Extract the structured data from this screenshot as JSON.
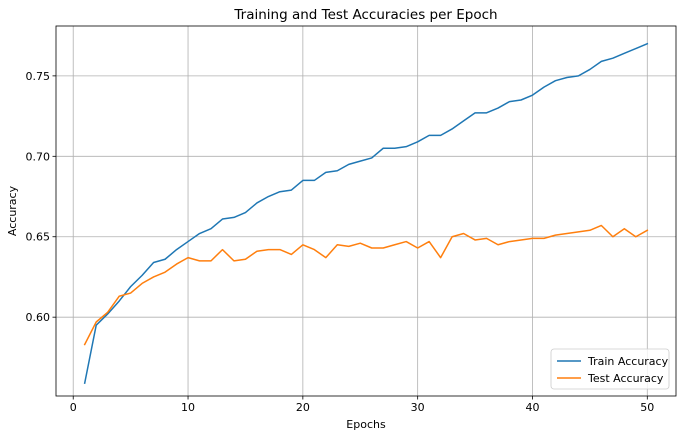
{
  "chart_data": {
    "type": "line",
    "title": "Training and Test Accuracies per Epoch",
    "xlabel": "Epochs",
    "ylabel": "Accuracy",
    "xlim": [
      -1.5,
      52.5
    ],
    "ylim": [
      0.551,
      0.781
    ],
    "xticks": [
      0,
      10,
      20,
      30,
      40,
      50
    ],
    "xtick_labels": [
      "0",
      "10",
      "20",
      "30",
      "40",
      "50"
    ],
    "yticks": [
      0.6,
      0.65,
      0.7,
      0.75
    ],
    "ytick_labels": [
      "0.60",
      "0.65",
      "0.70",
      "0.75"
    ],
    "grid": true,
    "legend_position": "lower-right",
    "x": [
      1,
      2,
      3,
      4,
      5,
      6,
      7,
      8,
      9,
      10,
      11,
      12,
      13,
      14,
      15,
      16,
      17,
      18,
      19,
      20,
      21,
      22,
      23,
      24,
      25,
      26,
      27,
      28,
      29,
      30,
      31,
      32,
      33,
      34,
      35,
      36,
      37,
      38,
      39,
      40,
      41,
      42,
      43,
      44,
      45,
      46,
      47,
      48,
      49,
      50
    ],
    "series": [
      {
        "name": "Train Accuracy",
        "color": "#1f77b4",
        "values": [
          0.559,
          0.595,
          0.602,
          0.61,
          0.619,
          0.626,
          0.634,
          0.636,
          0.642,
          0.647,
          0.652,
          0.655,
          0.661,
          0.662,
          0.665,
          0.671,
          0.675,
          0.678,
          0.679,
          0.685,
          0.685,
          0.69,
          0.691,
          0.695,
          0.697,
          0.699,
          0.705,
          0.705,
          0.706,
          0.709,
          0.713,
          0.713,
          0.717,
          0.722,
          0.727,
          0.727,
          0.73,
          0.734,
          0.735,
          0.738,
          0.743,
          0.747,
          0.749,
          0.75,
          0.754,
          0.759,
          0.761,
          0.764,
          0.767,
          0.77
        ]
      },
      {
        "name": "Test Accuracy",
        "color": "#ff7f0e",
        "values": [
          0.583,
          0.597,
          0.603,
          0.613,
          0.615,
          0.621,
          0.625,
          0.628,
          0.633,
          0.637,
          0.635,
          0.635,
          0.642,
          0.635,
          0.636,
          0.641,
          0.642,
          0.642,
          0.639,
          0.645,
          0.642,
          0.637,
          0.645,
          0.644,
          0.646,
          0.643,
          0.643,
          0.645,
          0.647,
          0.643,
          0.647,
          0.637,
          0.65,
          0.652,
          0.648,
          0.649,
          0.645,
          0.647,
          0.648,
          0.649,
          0.649,
          0.651,
          0.652,
          0.653,
          0.654,
          0.657,
          0.65,
          0.655,
          0.65,
          0.654
        ]
      }
    ]
  }
}
